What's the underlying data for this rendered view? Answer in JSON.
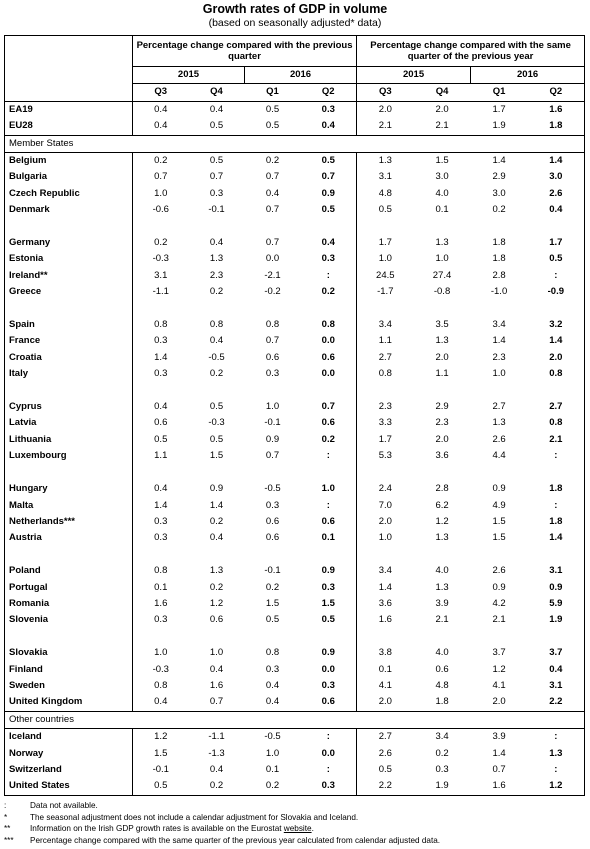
{
  "title": "Growth rates of GDP in volume",
  "subtitle": "(based on seasonally adjusted* data)",
  "headers": {
    "group_prev_quarter": "Percentage change compared with the previous quarter",
    "group_prev_year": "Percentage change compared with the same quarter of the previous year",
    "years": [
      "2015",
      "2016",
      "2015",
      "2016"
    ],
    "quarters": [
      "Q3",
      "Q4",
      "Q1",
      "Q2",
      "Q3",
      "Q4",
      "Q1",
      "Q2"
    ]
  },
  "aggregates": [
    {
      "name": "EA19",
      "values": [
        "0.4",
        "0.4",
        "0.5",
        "0.3",
        "2.0",
        "2.0",
        "1.7",
        "1.6"
      ]
    },
    {
      "name": "EU28",
      "values": [
        "0.4",
        "0.5",
        "0.5",
        "0.4",
        "2.1",
        "2.1",
        "1.9",
        "1.8"
      ]
    }
  ],
  "member_states_label": "Member States",
  "member_groups": [
    [
      {
        "name": "Belgium",
        "values": [
          "0.2",
          "0.5",
          "0.2",
          "0.5",
          "1.3",
          "1.5",
          "1.4",
          "1.4"
        ]
      },
      {
        "name": "Bulgaria",
        "values": [
          "0.7",
          "0.7",
          "0.7",
          "0.7",
          "3.1",
          "3.0",
          "2.9",
          "3.0"
        ]
      },
      {
        "name": "Czech Republic",
        "values": [
          "1.0",
          "0.3",
          "0.4",
          "0.9",
          "4.8",
          "4.0",
          "3.0",
          "2.6"
        ]
      },
      {
        "name": "Denmark",
        "values": [
          "-0.6",
          "-0.1",
          "0.7",
          "0.5",
          "0.5",
          "0.1",
          "0.2",
          "0.4"
        ]
      }
    ],
    [
      {
        "name": "Germany",
        "values": [
          "0.2",
          "0.4",
          "0.7",
          "0.4",
          "1.7",
          "1.3",
          "1.8",
          "1.7"
        ]
      },
      {
        "name": "Estonia",
        "values": [
          "-0.3",
          "1.3",
          "0.0",
          "0.3",
          "1.0",
          "1.0",
          "1.8",
          "0.5"
        ]
      },
      {
        "name": "Ireland**",
        "values": [
          "3.1",
          "2.3",
          "-2.1",
          ":",
          "24.5",
          "27.4",
          "2.8",
          ":"
        ]
      },
      {
        "name": "Greece",
        "values": [
          "-1.1",
          "0.2",
          "-0.2",
          "0.2",
          "-1.7",
          "-0.8",
          "-1.0",
          "-0.9"
        ]
      }
    ],
    [
      {
        "name": "Spain",
        "values": [
          "0.8",
          "0.8",
          "0.8",
          "0.8",
          "3.4",
          "3.5",
          "3.4",
          "3.2"
        ]
      },
      {
        "name": "France",
        "values": [
          "0.3",
          "0.4",
          "0.7",
          "0.0",
          "1.1",
          "1.3",
          "1.4",
          "1.4"
        ]
      },
      {
        "name": "Croatia",
        "values": [
          "1.4",
          "-0.5",
          "0.6",
          "0.6",
          "2.7",
          "2.0",
          "2.3",
          "2.0"
        ]
      },
      {
        "name": "Italy",
        "values": [
          "0.3",
          "0.2",
          "0.3",
          "0.0",
          "0.8",
          "1.1",
          "1.0",
          "0.8"
        ]
      }
    ],
    [
      {
        "name": "Cyprus",
        "values": [
          "0.4",
          "0.5",
          "1.0",
          "0.7",
          "2.3",
          "2.9",
          "2.7",
          "2.7"
        ]
      },
      {
        "name": "Latvia",
        "values": [
          "0.6",
          "-0.3",
          "-0.1",
          "0.6",
          "3.3",
          "2.3",
          "1.3",
          "0.8"
        ]
      },
      {
        "name": "Lithuania",
        "values": [
          "0.5",
          "0.5",
          "0.9",
          "0.2",
          "1.7",
          "2.0",
          "2.6",
          "2.1"
        ]
      },
      {
        "name": "Luxembourg",
        "values": [
          "1.1",
          "1.5",
          "0.7",
          ":",
          "5.3",
          "3.6",
          "4.4",
          ":"
        ]
      }
    ],
    [
      {
        "name": "Hungary",
        "values": [
          "0.4",
          "0.9",
          "-0.5",
          "1.0",
          "2.4",
          "2.8",
          "0.9",
          "1.8"
        ]
      },
      {
        "name": "Malta",
        "values": [
          "1.4",
          "1.4",
          "0.3",
          ":",
          "7.0",
          "6.2",
          "4.9",
          ":"
        ]
      },
      {
        "name": "Netherlands***",
        "values": [
          "0.3",
          "0.2",
          "0.6",
          "0.6",
          "2.0",
          "1.2",
          "1.5",
          "1.8"
        ]
      },
      {
        "name": "Austria",
        "values": [
          "0.3",
          "0.4",
          "0.6",
          "0.1",
          "1.0",
          "1.3",
          "1.5",
          "1.4"
        ]
      }
    ],
    [
      {
        "name": "Poland",
        "values": [
          "0.8",
          "1.3",
          "-0.1",
          "0.9",
          "3.4",
          "4.0",
          "2.6",
          "3.1"
        ]
      },
      {
        "name": "Portugal",
        "values": [
          "0.1",
          "0.2",
          "0.2",
          "0.3",
          "1.4",
          "1.3",
          "0.9",
          "0.9"
        ]
      },
      {
        "name": "Romania",
        "values": [
          "1.6",
          "1.2",
          "1.5",
          "1.5",
          "3.6",
          "3.9",
          "4.2",
          "5.9"
        ]
      },
      {
        "name": "Slovenia",
        "values": [
          "0.3",
          "0.6",
          "0.5",
          "0.5",
          "1.6",
          "2.1",
          "2.1",
          "1.9"
        ]
      }
    ],
    [
      {
        "name": "Slovakia",
        "values": [
          "1.0",
          "1.0",
          "0.8",
          "0.9",
          "3.8",
          "4.0",
          "3.7",
          "3.7"
        ]
      },
      {
        "name": "Finland",
        "values": [
          "-0.3",
          "0.4",
          "0.3",
          "0.0",
          "0.1",
          "0.6",
          "1.2",
          "0.4"
        ]
      },
      {
        "name": "Sweden",
        "values": [
          "0.8",
          "1.6",
          "0.4",
          "0.3",
          "4.1",
          "4.8",
          "4.1",
          "3.1"
        ]
      },
      {
        "name": "United Kingdom",
        "values": [
          "0.4",
          "0.7",
          "0.4",
          "0.6",
          "2.0",
          "1.8",
          "2.0",
          "2.2"
        ]
      }
    ]
  ],
  "other_countries_label": "Other countries",
  "other_countries": [
    {
      "name": "Iceland",
      "values": [
        "1.2",
        "-1.1",
        "-0.5",
        ":",
        "2.7",
        "3.4",
        "3.9",
        ":"
      ]
    },
    {
      "name": "Norway",
      "values": [
        "1.5",
        "-1.3",
        "1.0",
        "0.0",
        "2.6",
        "0.2",
        "1.4",
        "1.3"
      ]
    },
    {
      "name": "Switzerland",
      "values": [
        "-0.1",
        "0.4",
        "0.1",
        ":",
        "0.5",
        "0.3",
        "0.7",
        ":"
      ]
    },
    {
      "name": "United States",
      "values": [
        "0.5",
        "0.2",
        "0.2",
        "0.3",
        "2.2",
        "1.9",
        "1.6",
        "1.2"
      ]
    }
  ],
  "footnotes": [
    {
      "symbol": ":",
      "text": "Data not available."
    },
    {
      "symbol": "*",
      "text": "The seasonal adjustment does not include a calendar adjustment for Slovakia and Iceland."
    },
    {
      "symbol": "**",
      "text": "Information on the Irish GDP growth rates is available on the Eurostat ",
      "link": "website",
      "after": "."
    },
    {
      "symbol": "***",
      "text": "Percentage change compared with the same quarter of the previous year calculated from calendar adjusted data."
    }
  ]
}
